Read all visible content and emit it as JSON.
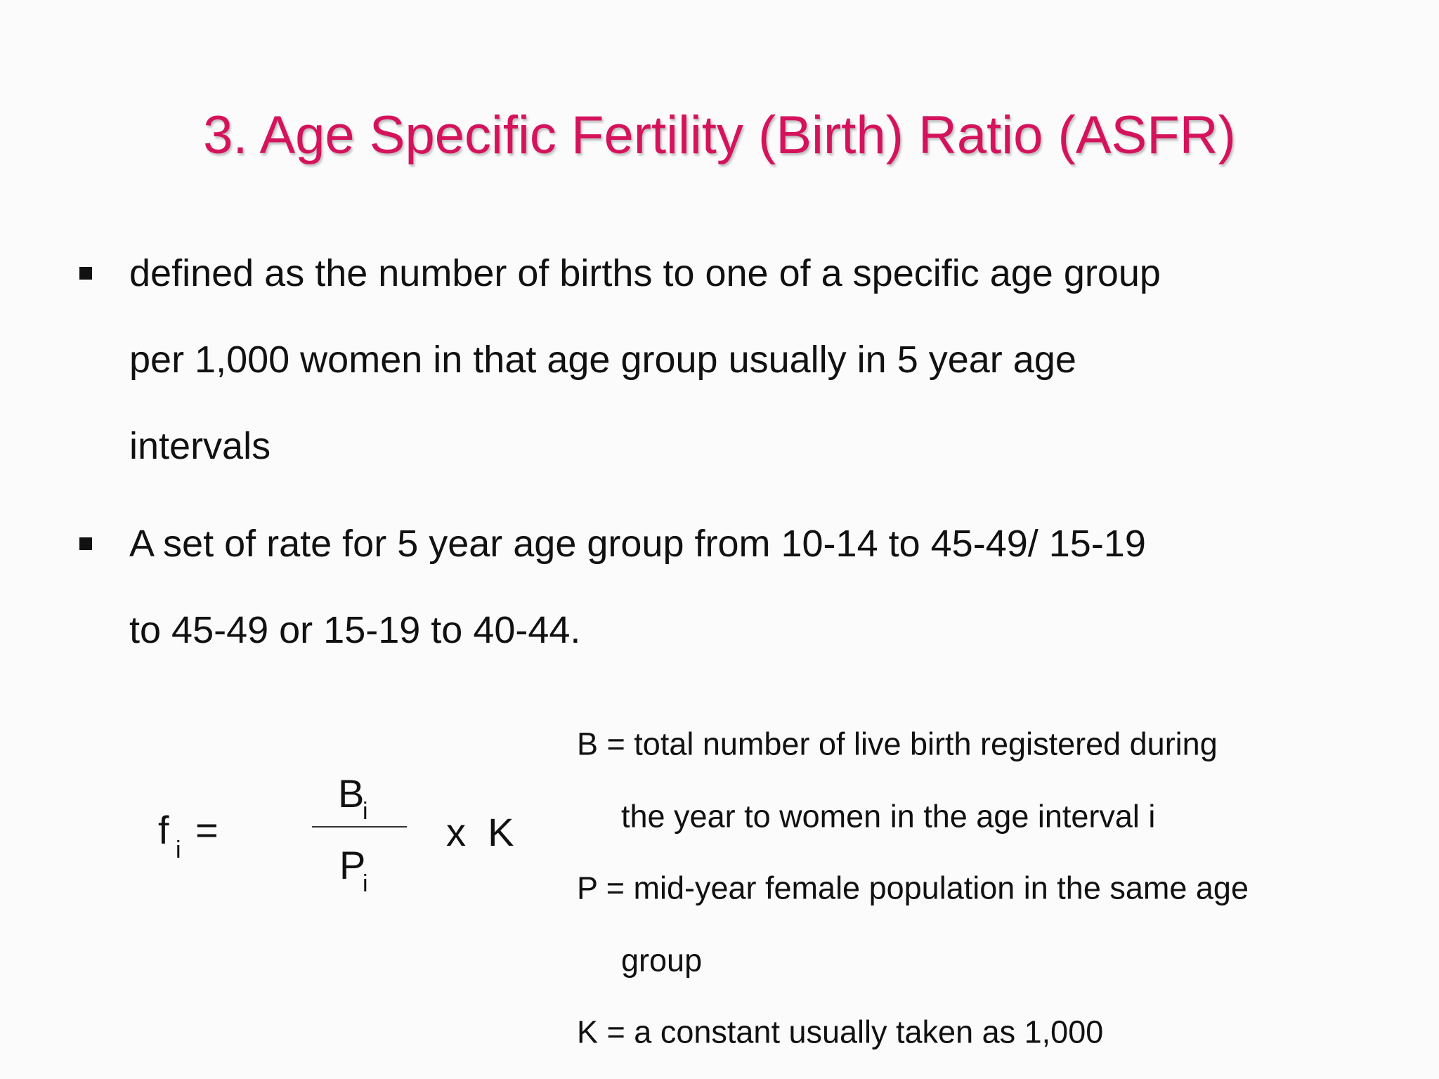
{
  "title": "3. Age Specific Fertility (Birth) Ratio (ASFR)",
  "bullets": [
    {
      "lines": [
        "defined as the number of births to one of a specific age group",
        "per 1,000 women in that age group usually in 5 year age",
        "intervals"
      ]
    },
    {
      "lines": [
        "A set of rate for 5 year age group from 10-14 to 45-49/ 15-19",
        "to 45-49 or 15-19 to 40-44."
      ]
    }
  ],
  "formula": {
    "lhs": "f",
    "lhs_sub": "i",
    "equals": "=",
    "numerator": "B",
    "numerator_sub": "i",
    "denominator": "P",
    "denominator_sub": "i",
    "multiplier": "x  K"
  },
  "definitions": [
    {
      "lines": [
        "B = total number of live birth registered during",
        "the year to women in the age interval i"
      ]
    },
    {
      "lines": [
        "P = mid-year female population in the same age",
        "group"
      ]
    },
    {
      "lines": [
        "K = a constant usually taken as 1,000"
      ]
    }
  ]
}
